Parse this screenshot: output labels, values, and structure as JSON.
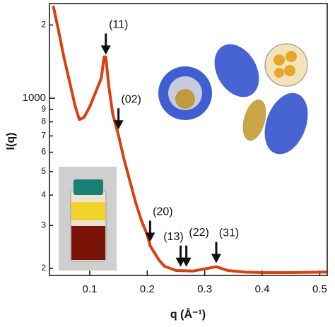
{
  "chart_data": {
    "type": "line",
    "xlabel": "q (Å⁻¹)",
    "ylabel": "I(q)",
    "log_y": true,
    "xlim": [
      0.03,
      0.513
    ],
    "ylim": [
      187,
      2450
    ],
    "xticks": [
      0.1,
      0.2,
      0.3,
      0.4,
      0.5
    ],
    "yticks": [
      {
        "value": 2000,
        "label": "2"
      },
      1000,
      {
        "value": 900,
        "label": "9"
      },
      {
        "value": 800,
        "label": "8"
      },
      {
        "value": 700,
        "label": "7"
      },
      {
        "value": 600,
        "label": "6"
      },
      {
        "value": 500,
        "label": "5"
      },
      {
        "value": 400,
        "label": "4"
      },
      {
        "value": 300,
        "label": "3"
      },
      {
        "value": 200,
        "label": "2"
      }
    ],
    "series": [
      {
        "color": "#d9400f",
        "x": [
          0.037,
          0.045,
          0.055,
          0.065,
          0.075,
          0.082,
          0.09,
          0.1,
          0.11,
          0.12,
          0.125,
          0.128,
          0.133,
          0.14,
          0.145,
          0.15,
          0.16,
          0.17,
          0.18,
          0.19,
          0.2,
          0.205,
          0.21,
          0.22,
          0.23,
          0.25,
          0.28,
          0.3,
          0.32,
          0.34,
          0.37,
          0.4,
          0.45,
          0.51
        ],
        "values": [
          2370,
          1935,
          1478,
          1168,
          922,
          817,
          834,
          922,
          1055,
          1207,
          1478,
          1478,
          1129,
          862,
          779,
          705,
          557,
          455,
          372,
          314,
          275,
          248,
          237,
          217,
          204,
          196,
          195,
          199,
          203,
          196,
          193,
          192,
          192,
          193
        ]
      }
    ],
    "annotations": [
      {
        "text": "(11)",
        "x": 0.128,
        "y": 1480
      },
      {
        "text": "(02)",
        "x": 0.15,
        "y": 730
      },
      {
        "text": "(20)",
        "x": 0.205,
        "y": 252
      },
      {
        "text": "(13)",
        "x": 0.258,
        "y": 199
      },
      {
        "text": "(22)",
        "x": 0.268,
        "y": 199
      },
      {
        "text": "(31)",
        "x": 0.32,
        "y": 206
      }
    ]
  }
}
